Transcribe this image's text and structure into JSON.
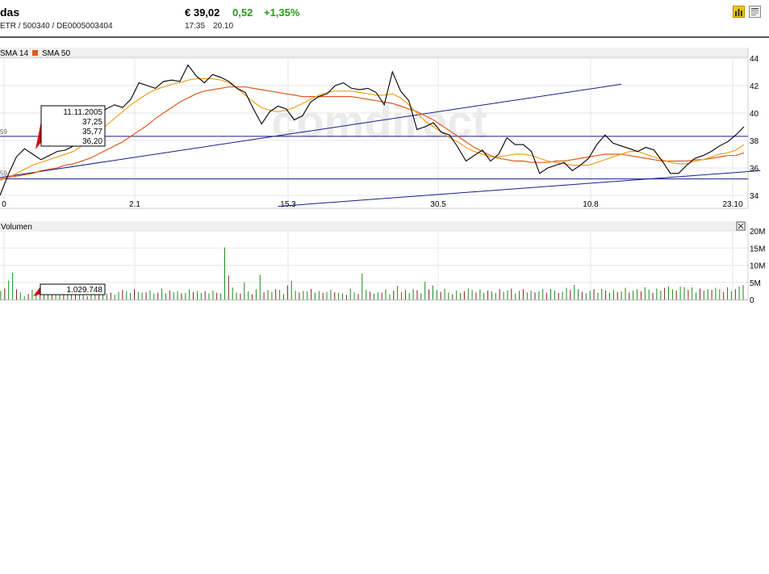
{
  "header": {
    "name": "das",
    "ids": "ETR  /  500340  /  DE0005003404",
    "price": "€ 39,02",
    "change": "0,52",
    "change_pct": "+1,35%",
    "time": "17:35",
    "date": "20.10",
    "icons": [
      "bar-chart-icon",
      "news-icon"
    ]
  },
  "legend": {
    "items": [
      {
        "label": "SMA 14",
        "color": "#f0a020"
      },
      {
        "label": "SMA 50",
        "color": "#e05a1c"
      }
    ]
  },
  "tooltip": {
    "date": "11.11.2005",
    "values": [
      "37,25",
      "35,77",
      "36,20"
    ],
    "value_colors": [
      "#000000",
      "#f0a020",
      "#e05a1c"
    ]
  },
  "volume_panel": {
    "label": "Volumen",
    "tooltip_value": "1.029.748",
    "close_icon": "close-icon",
    "y_ticks": [
      "20M",
      "15M",
      "10M",
      "5M",
      "0"
    ]
  },
  "watermark": "comdirect",
  "chart_data": {
    "type": "line",
    "title": "",
    "x_tick_labels": [
      "0",
      "2.1",
      "15.3",
      "30.5",
      "10.8",
      "23.10"
    ],
    "y_ticks": [
      34,
      36,
      38,
      40,
      42,
      44
    ],
    "ylim": [
      34,
      44
    ],
    "grid": true,
    "legend_position": "top-left",
    "left_markers": [
      "59",
      "59"
    ],
    "series": [
      {
        "name": "",
        "color": "#000000",
        "values": [
          34.0,
          35.5,
          36.8,
          37.4,
          37.0,
          36.6,
          36.9,
          37.2,
          37.3,
          37.6,
          38.0,
          38.9,
          39.8,
          40.3,
          40.6,
          40.4,
          41.0,
          42.2,
          42.0,
          41.8,
          42.3,
          42.4,
          42.3,
          43.5,
          42.7,
          42.2,
          42.8,
          42.6,
          42.3,
          41.8,
          41.5,
          40.3,
          39.2,
          40.1,
          40.5,
          40.3,
          39.5,
          39.8,
          40.8,
          41.2,
          41.4,
          42.0,
          42.2,
          41.8,
          41.7,
          41.8,
          41.5,
          40.6,
          43.0,
          41.6,
          40.9,
          38.8,
          39.0,
          39.3,
          38.6,
          38.4,
          37.5,
          36.5,
          36.9,
          37.3,
          36.5,
          37.0,
          38.2,
          37.7,
          37.7,
          37.2,
          35.6,
          36.0,
          36.2,
          36.4,
          35.8,
          36.2,
          36.7,
          37.7,
          38.4,
          37.8,
          37.6,
          37.4,
          37.2,
          37.5,
          37.3,
          36.5,
          35.6,
          35.6,
          36.2,
          36.7,
          36.9,
          37.2,
          37.6,
          37.9,
          38.4,
          39.0
        ]
      },
      {
        "name": "SMA 14",
        "color": "#f0a020",
        "values": [
          35.1,
          35.3,
          35.6,
          35.9,
          36.2,
          36.4,
          36.6,
          36.8,
          37.0,
          37.2,
          37.6,
          38.1,
          38.6,
          39.1,
          39.6,
          40.1,
          40.6,
          41.0,
          41.4,
          41.7,
          41.9,
          42.1,
          42.2,
          42.4,
          42.5,
          42.5,
          42.5,
          42.4,
          42.2,
          41.8,
          41.3,
          40.8,
          40.4,
          40.2,
          40.1,
          40.2,
          40.4,
          40.7,
          41.0,
          41.3,
          41.5,
          41.6,
          41.6,
          41.6,
          41.5,
          41.4,
          41.3,
          41.3,
          41.4,
          41.1,
          40.6,
          40.0,
          39.4,
          39.0,
          38.6,
          38.2,
          37.9,
          37.5,
          37.2,
          37.0,
          36.8,
          36.8,
          36.9,
          37.0,
          37.0,
          36.9,
          36.7,
          36.5,
          36.4,
          36.3,
          36.2,
          36.2,
          36.2,
          36.4,
          36.6,
          36.8,
          37.0,
          37.2,
          37.2,
          37.0,
          36.8,
          36.6,
          36.4,
          36.3,
          36.3,
          36.5,
          36.6,
          36.8,
          37.0,
          37.1,
          37.3,
          37.7
        ]
      },
      {
        "name": "SMA 50",
        "color": "#e05a1c",
        "values": [
          35.2,
          35.3,
          35.4,
          35.5,
          35.6,
          35.8,
          35.9,
          36.0,
          36.2,
          36.3,
          36.5,
          36.7,
          37.0,
          37.3,
          37.6,
          37.9,
          38.3,
          38.7,
          39.1,
          39.6,
          40.0,
          40.4,
          40.8,
          41.1,
          41.4,
          41.6,
          41.7,
          41.8,
          41.9,
          41.9,
          41.9,
          41.8,
          41.7,
          41.6,
          41.5,
          41.4,
          41.3,
          41.2,
          41.2,
          41.2,
          41.2,
          41.2,
          41.2,
          41.2,
          41.1,
          41.0,
          40.9,
          40.8,
          40.7,
          40.5,
          40.3,
          40.1,
          39.8,
          39.5,
          39.1,
          38.7,
          38.3,
          37.9,
          37.5,
          37.2,
          36.9,
          36.7,
          36.6,
          36.5,
          36.5,
          36.4,
          36.4,
          36.4,
          36.5,
          36.5,
          36.6,
          36.7,
          36.8,
          36.9,
          37.0,
          37.0,
          37.0,
          36.9,
          36.8,
          36.7,
          36.6,
          36.5,
          36.5,
          36.5,
          36.5,
          36.6,
          36.6,
          36.7,
          36.8,
          36.9,
          36.9,
          37.1
        ]
      }
    ],
    "support_levels": [
      38.3,
      35.2
    ],
    "trendlines": [
      {
        "from": [
          0,
          35.3
        ],
        "to": [
          76,
          42.1
        ]
      },
      {
        "from": [
          34,
          33.2
        ],
        "to": [
          93,
          35.8
        ]
      }
    ],
    "volume": {
      "ylim": [
        0,
        20
      ],
      "unit": "M",
      "values": [
        2.5,
        3.2,
        5.5,
        7.8,
        3.0,
        2.1,
        1.0,
        1.6,
        2.8,
        2.2,
        2.0,
        1.5,
        2.5,
        2.2,
        1.8,
        1.6,
        2.0,
        2.3,
        1.9,
        1.8,
        1.5,
        1.2,
        1.0,
        1.3,
        1.8,
        1.6,
        1.4,
        1.6,
        2.0,
        1.4,
        2.2,
        2.8,
        2.4,
        1.9,
        3.0,
        2.2,
        2.0,
        2.1,
        2.6,
        1.8,
        2.0,
        3.2,
        1.8,
        2.6,
        2.1,
        2.4,
        1.8,
        1.9,
        3.0,
        2.2,
        2.5,
        1.9,
        2.4,
        1.8,
        2.6,
        2.0,
        1.8,
        15.2,
        7.0,
        3.5,
        2.0,
        1.7,
        5.0,
        2.4,
        1.5,
        3.0,
        7.2,
        2.1,
        2.8,
        2.2,
        3.0,
        2.8,
        1.6,
        4.1,
        5.4,
        2.6,
        2.1,
        2.5,
        2.4,
        3.1,
        2.0,
        2.5,
        1.9,
        2.2,
        2.8,
        2.1,
        2.0,
        1.8,
        1.4,
        3.2,
        2.1,
        1.6,
        7.6,
        2.8,
        2.3,
        1.7,
        2.1,
        2.0,
        3.0,
        1.5,
        2.6,
        4.0,
        2.2,
        2.8,
        1.9,
        3.1,
        2.7,
        1.8,
        5.2,
        3.0,
        4.1,
        2.8,
        2.2,
        3.1,
        2.0,
        1.5,
        2.6,
        1.9,
        2.4,
        3.2,
        2.8,
        2.1,
        3.0,
        2.0,
        2.6,
        2.4,
        1.9,
        3.0,
        2.2,
        2.7,
        3.2,
        1.8,
        2.5,
        3.0,
        2.1,
        2.6,
        2.1,
        2.4,
        3.0,
        2.0,
        3.1,
        2.6,
        1.9,
        2.3,
        3.4,
        2.8,
        4.2,
        3.0,
        2.2,
        1.8,
        2.5,
        3.0,
        2.0,
        3.1,
        2.6,
        2.0,
        2.8,
        2.2,
        2.4,
        3.4,
        2.0,
        2.6,
        3.0,
        2.4,
        3.6,
        2.9,
        2.0,
        3.2,
        2.6,
        3.4,
        3.8,
        3.0,
        2.6,
        3.8,
        3.6,
        2.8,
        3.5,
        2.0,
        3.2,
        2.6,
        3.0,
        2.8,
        3.4,
        3.0,
        2.2,
        3.6,
        2.4,
        3.0,
        3.8,
        4.2
      ],
      "up_color": "#1a8a1a",
      "down_color": "#8a1a2a"
    }
  }
}
